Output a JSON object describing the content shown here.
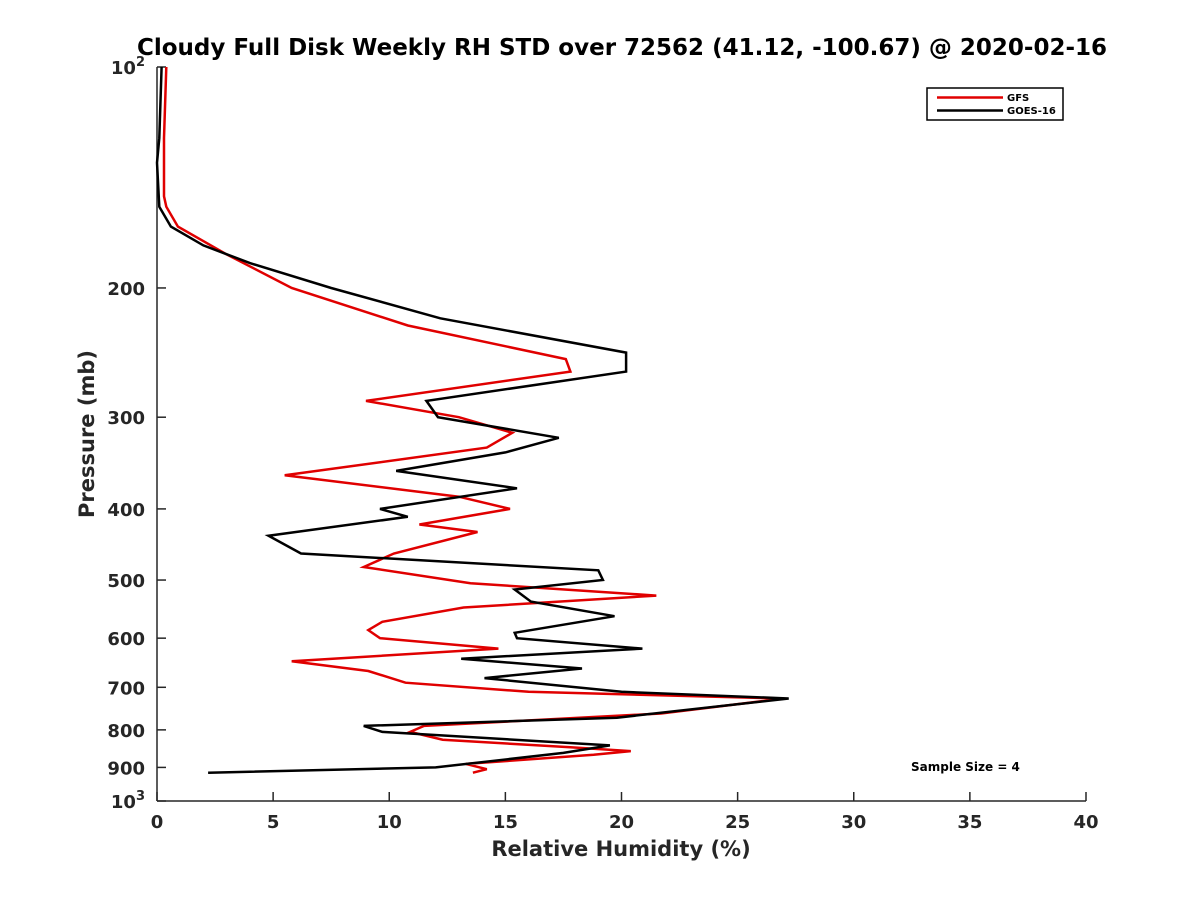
{
  "chart_data": {
    "type": "line",
    "title": "Cloudy Full Disk Weekly RH STD over 72562 (41.12, -100.67) @ 2020-02-16",
    "xlabel": "Relative Humidity (%)",
    "ylabel": "Pressure (mb)",
    "xlim": [
      0,
      40
    ],
    "ylim": [
      100,
      1000
    ],
    "y_scale": "log",
    "y_reversed": true,
    "x_ticks": [
      "0",
      "5",
      "10",
      "15",
      "20",
      "25",
      "30",
      "35",
      "40"
    ],
    "y_ticks": [
      {
        "value": 100,
        "base": "10",
        "exp": "2"
      },
      {
        "value": 200,
        "label": "200"
      },
      {
        "value": 300,
        "label": "300"
      },
      {
        "value": 400,
        "label": "400"
      },
      {
        "value": 500,
        "label": "500"
      },
      {
        "value": 600,
        "label": "600"
      },
      {
        "value": 700,
        "label": "700"
      },
      {
        "value": 800,
        "label": "800"
      },
      {
        "value": 900,
        "label": "900"
      },
      {
        "value": 1000,
        "base": "10",
        "exp": "3"
      }
    ],
    "grid": false,
    "legend_position": "top-right",
    "annotation": "Sample Size = 4",
    "series": [
      {
        "name": "GFS",
        "color": "#e00000",
        "points": [
          [
            0.4,
            100
          ],
          [
            0.3,
            125
          ],
          [
            0.3,
            150
          ],
          [
            0.4,
            155
          ],
          [
            0.9,
            165
          ],
          [
            3.0,
            180
          ],
          [
            5.8,
            200
          ],
          [
            10.8,
            225
          ],
          [
            17.6,
            250
          ],
          [
            17.8,
            260
          ],
          [
            9.0,
            285
          ],
          [
            13.0,
            300
          ],
          [
            15.3,
            315
          ],
          [
            14.2,
            330
          ],
          [
            5.5,
            360
          ],
          [
            13.0,
            385
          ],
          [
            15.2,
            400
          ],
          [
            11.3,
            420
          ],
          [
            13.8,
            430
          ],
          [
            10.2,
            460
          ],
          [
            8.9,
            480
          ],
          [
            13.5,
            505
          ],
          [
            21.5,
            525
          ],
          [
            13.2,
            545
          ],
          [
            9.7,
            570
          ],
          [
            9.1,
            585
          ],
          [
            9.6,
            600
          ],
          [
            14.7,
            620
          ],
          [
            5.8,
            645
          ],
          [
            9.1,
            665
          ],
          [
            10.7,
            690
          ],
          [
            16.0,
            710
          ],
          [
            27.0,
            725
          ],
          [
            21.7,
            760
          ],
          [
            11.5,
            790
          ],
          [
            10.9,
            805
          ],
          [
            12.3,
            825
          ],
          [
            17.8,
            845
          ],
          [
            20.4,
            855
          ],
          [
            18.8,
            865
          ],
          [
            13.3,
            890
          ],
          [
            14.2,
            905
          ],
          [
            13.6,
            915
          ]
        ]
      },
      {
        "name": "GOES-16",
        "color": "#000000",
        "points": [
          [
            0.2,
            100
          ],
          [
            0.1,
            125
          ],
          [
            0.0,
            135
          ],
          [
            0.1,
            155
          ],
          [
            0.6,
            165
          ],
          [
            2.0,
            175
          ],
          [
            4.0,
            185
          ],
          [
            7.5,
            200
          ],
          [
            12.2,
            220
          ],
          [
            20.2,
            245
          ],
          [
            20.2,
            260
          ],
          [
            11.6,
            285
          ],
          [
            12.1,
            300
          ],
          [
            17.3,
            320
          ],
          [
            15.0,
            335
          ],
          [
            10.3,
            355
          ],
          [
            15.5,
            375
          ],
          [
            9.6,
            400
          ],
          [
            10.8,
            410
          ],
          [
            4.8,
            435
          ],
          [
            6.2,
            460
          ],
          [
            19.0,
            485
          ],
          [
            19.2,
            500
          ],
          [
            15.4,
            515
          ],
          [
            16.1,
            535
          ],
          [
            19.7,
            560
          ],
          [
            15.4,
            590
          ],
          [
            15.5,
            600
          ],
          [
            20.9,
            620
          ],
          [
            13.1,
            640
          ],
          [
            18.3,
            660
          ],
          [
            14.1,
            680
          ],
          [
            20.0,
            710
          ],
          [
            27.2,
            725
          ],
          [
            19.8,
            770
          ],
          [
            8.9,
            790
          ],
          [
            9.7,
            805
          ],
          [
            19.5,
            840
          ],
          [
            17.5,
            860
          ],
          [
            12.0,
            900
          ],
          [
            2.2,
            915
          ]
        ]
      }
    ]
  }
}
